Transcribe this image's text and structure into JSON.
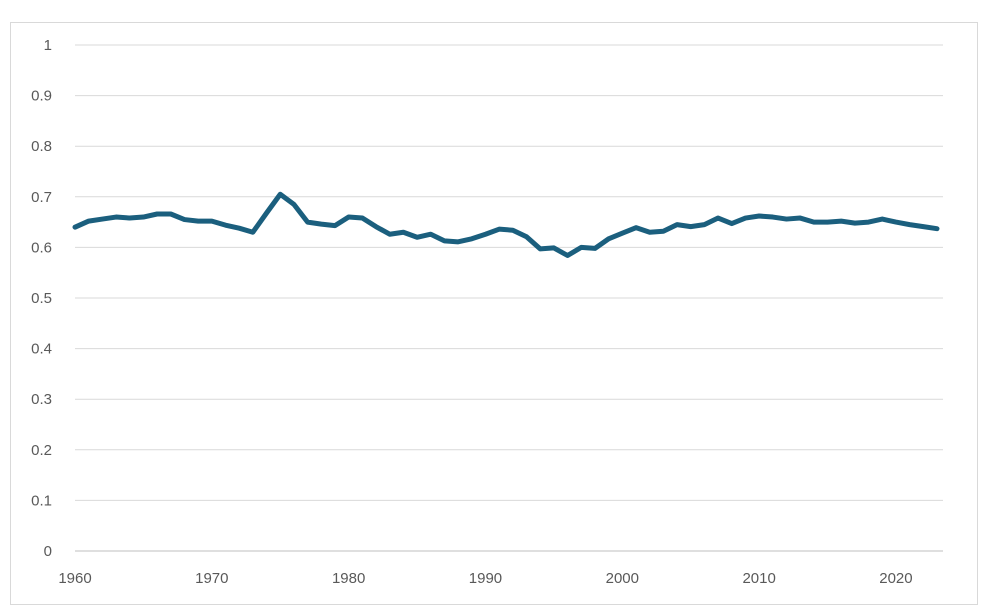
{
  "chart_data": {
    "type": "line",
    "title": "",
    "xlabel": "",
    "ylabel": "",
    "xlim": [
      1960,
      2023
    ],
    "ylim": [
      0,
      1
    ],
    "yticks": [
      0,
      0.1,
      0.2,
      0.3,
      0.4,
      0.5,
      0.6,
      0.7,
      0.8,
      0.9,
      1
    ],
    "ytick_labels": [
      "0",
      "0.1",
      "0.2",
      "0.3",
      "0.4",
      "0.5",
      "0.6",
      "0.7",
      "0.8",
      "0.9",
      "1"
    ],
    "xticks": [
      1960,
      1970,
      1980,
      1990,
      2000,
      2010,
      2020
    ],
    "xtick_labels": [
      "1960",
      "1970",
      "1980",
      "1990",
      "2000",
      "2010",
      "2020"
    ],
    "grid": true,
    "legend": "none",
    "colors": {
      "series": "#1b5f7e",
      "grid": "#d9d9d9",
      "tick_text": "#595959"
    },
    "series": [
      {
        "x": [
          1960,
          1961,
          1962,
          1963,
          1964,
          1965,
          1966,
          1967,
          1968,
          1969,
          1970,
          1971,
          1972,
          1973,
          1974,
          1975,
          1976,
          1977,
          1978,
          1979,
          1980,
          1981,
          1982,
          1983,
          1984,
          1985,
          1986,
          1987,
          1988,
          1989,
          1990,
          1991,
          1992,
          1993,
          1994,
          1995,
          1996,
          1997,
          1998,
          1999,
          2000,
          2001,
          2002,
          2003,
          2004,
          2005,
          2006,
          2007,
          2008,
          2009,
          2010,
          2011,
          2012,
          2013,
          2014,
          2015,
          2016,
          2017,
          2018,
          2019,
          2020,
          2021,
          2022,
          2023
        ],
        "values": [
          0.64,
          0.652,
          0.656,
          0.66,
          0.658,
          0.66,
          0.666,
          0.666,
          0.655,
          0.652,
          0.652,
          0.644,
          0.638,
          0.63,
          0.668,
          0.705,
          0.685,
          0.65,
          0.646,
          0.643,
          0.66,
          0.658,
          0.641,
          0.626,
          0.63,
          0.62,
          0.626,
          0.613,
          0.611,
          0.617,
          0.626,
          0.636,
          0.634,
          0.621,
          0.597,
          0.599,
          0.584,
          0.6,
          0.598,
          0.617,
          0.628,
          0.639,
          0.63,
          0.632,
          0.645,
          0.641,
          0.645,
          0.658,
          0.647,
          0.658,
          0.662,
          0.66,
          0.656,
          0.658,
          0.65,
          0.65,
          0.652,
          0.648,
          0.65,
          0.656,
          0.65,
          0.645,
          0.641,
          0.637
        ]
      }
    ]
  }
}
